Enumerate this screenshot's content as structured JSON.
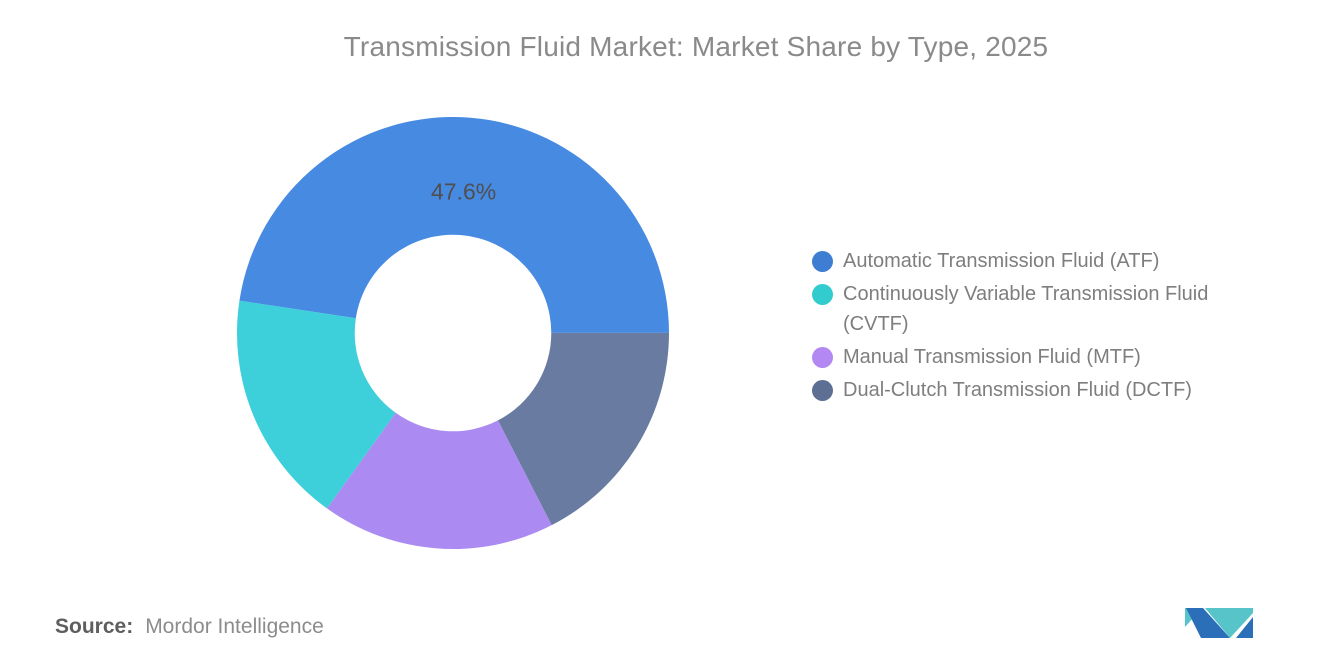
{
  "title": "Transmission Fluid Market: Market Share by Type, 2025",
  "source": {
    "label": "Source:",
    "value": "Mordor Intelligence"
  },
  "colors": {
    "background": "#ffffff",
    "title_text": "#8a8a8a",
    "legend_text": "#7e7e7e",
    "slice_label_text": "#4f4f4f",
    "source_label_text": "#5e5e5e",
    "source_value_text": "#8c8c8c",
    "logo_teal": "#56c4c8",
    "logo_blue": "#2a6fb7"
  },
  "chart_data": {
    "type": "pie",
    "donut": true,
    "title": "Transmission Fluid Market: Market Share by Type, 2025",
    "series": [
      {
        "id": "atf",
        "label": "Automatic Transmission Fluid (ATF)",
        "value": 47.6,
        "display_label": "47.6%",
        "color": "#478ae2",
        "legend_color": "#3d7ed2"
      },
      {
        "id": "cvtf",
        "label": "Continuously Variable Transmission Fluid (CVTF)",
        "value": 17.47,
        "display_label": null,
        "color": "#3dcfda",
        "legend_color": "#32cbce"
      },
      {
        "id": "mtf",
        "label": "Manual Transmission Fluid (MTF)",
        "value": 17.47,
        "display_label": null,
        "color": "#ab8bf1",
        "legend_color": "#b388f2"
      },
      {
        "id": "dctf",
        "label": "Dual-Clutch Transmission Fluid (DCTF)",
        "value": 17.46,
        "display_label": null,
        "color": "#697ba1",
        "legend_color": "#5d6f93"
      }
    ],
    "layout": {
      "start_angle_deg": -81.4,
      "clockwise_draw_order": [
        0,
        3,
        2,
        1
      ],
      "inner_radius_ratio": 0.455,
      "label_radius_ratio": 0.657,
      "legend_position": "right",
      "grid": false
    }
  }
}
